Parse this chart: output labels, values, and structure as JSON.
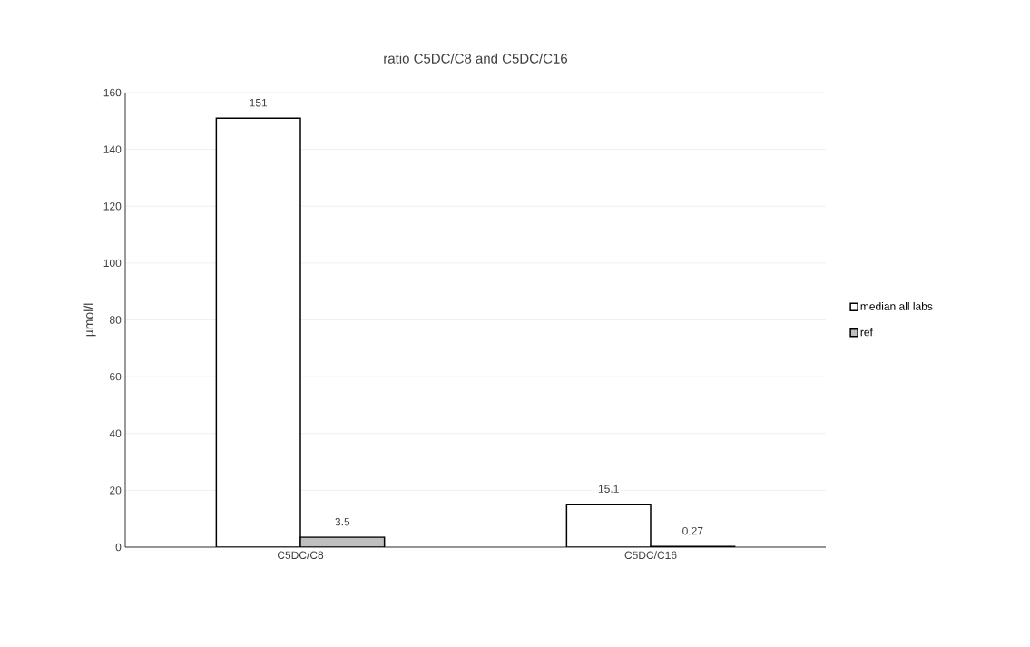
{
  "chart_data": {
    "type": "bar",
    "title": "ratio C5DC/C8 and C5DC/C16",
    "ylabel": "µmol/l",
    "categories": [
      "C5DC/C8",
      "C5DC/C16"
    ],
    "series": [
      {
        "name": "median all labs",
        "color": "#ffffff",
        "values": [
          151,
          15.1
        ]
      },
      {
        "name": "ref",
        "color": "#bfbfbf",
        "values": [
          3.5,
          0.27
        ]
      }
    ],
    "ylim": [
      0,
      160
    ],
    "yticks": [
      0,
      20,
      40,
      60,
      80,
      100,
      120,
      140,
      160
    ],
    "grid": "y",
    "legend": "right",
    "data_labels": true
  }
}
